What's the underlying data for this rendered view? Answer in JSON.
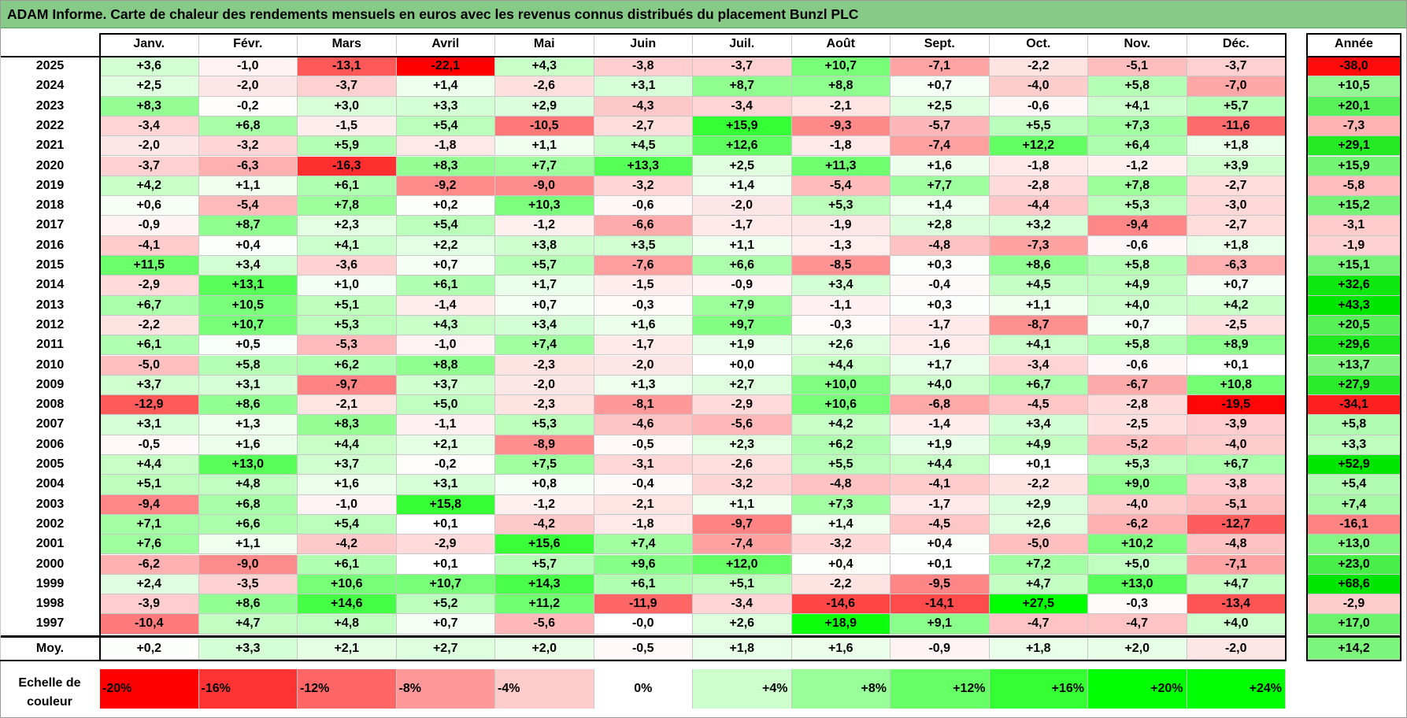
{
  "title": "ADAM Informe. Carte de chaleur des rendements mensuels en euros avec les revenus connus distribués du placement Bunzl PLC",
  "chart_data": {
    "type": "heatmap",
    "columns": [
      "Janv.",
      "Févr.",
      "Mars",
      "Avril",
      "Mai",
      "Juin",
      "Juil.",
      "Août",
      "Sept.",
      "Oct.",
      "Nov.",
      "Déc."
    ],
    "year_header": "Année",
    "rows": [
      {
        "year": "2025",
        "values": [
          "+3,6",
          "-1,0",
          "-13,1",
          "-22,1",
          "+4,3",
          "-3,8",
          "-3,7",
          "+10,7",
          "-7,1",
          "-2,2",
          "-5,1",
          "-3,7"
        ],
        "annual": "-38,0"
      },
      {
        "year": "2024",
        "values": [
          "+2,5",
          "-2,0",
          "-3,7",
          "+1,4",
          "-2,6",
          "+3,1",
          "+8,7",
          "+8,8",
          "+0,7",
          "-4,0",
          "+5,8",
          "-7,0"
        ],
        "annual": "+10,5"
      },
      {
        "year": "2023",
        "values": [
          "+8,3",
          "-0,2",
          "+3,0",
          "+3,3",
          "+2,9",
          "-4,3",
          "-3,4",
          "-2,1",
          "+2,5",
          "-0,6",
          "+4,1",
          "+5,7"
        ],
        "annual": "+20,1"
      },
      {
        "year": "2022",
        "values": [
          "-3,4",
          "+6,8",
          "-1,5",
          "+5,4",
          "-10,5",
          "-2,7",
          "+15,9",
          "-9,3",
          "-5,7",
          "+5,5",
          "+7,3",
          "-11,6"
        ],
        "annual": "-7,3"
      },
      {
        "year": "2021",
        "values": [
          "-2,0",
          "-3,2",
          "+5,9",
          "-1,8",
          "+1,1",
          "+4,5",
          "+12,6",
          "-1,8",
          "-7,4",
          "+12,2",
          "+6,4",
          "+1,8"
        ],
        "annual": "+29,1"
      },
      {
        "year": "2020",
        "values": [
          "-3,7",
          "-6,3",
          "-16,3",
          "+8,3",
          "+7,7",
          "+13,3",
          "+2,5",
          "+11,3",
          "+1,6",
          "-1,8",
          "-1,2",
          "+3,9"
        ],
        "annual": "+15,9"
      },
      {
        "year": "2019",
        "values": [
          "+4,2",
          "+1,1",
          "+6,1",
          "-9,2",
          "-9,0",
          "-3,2",
          "+1,4",
          "-5,4",
          "+7,7",
          "-2,8",
          "+7,8",
          "-2,7"
        ],
        "annual": "-5,8"
      },
      {
        "year": "2018",
        "values": [
          "+0,6",
          "-5,4",
          "+7,8",
          "+0,2",
          "+10,3",
          "-0,6",
          "-2,0",
          "+5,3",
          "+1,4",
          "-4,4",
          "+5,3",
          "-3,0"
        ],
        "annual": "+15,2"
      },
      {
        "year": "2017",
        "values": [
          "-0,9",
          "+8,7",
          "+2,3",
          "+5,4",
          "-1,2",
          "-6,6",
          "-1,7",
          "-1,9",
          "+2,8",
          "+3,2",
          "-9,4",
          "-2,7"
        ],
        "annual": "-3,1"
      },
      {
        "year": "2016",
        "values": [
          "-4,1",
          "+0,4",
          "+4,1",
          "+2,2",
          "+3,8",
          "+3,5",
          "+1,1",
          "-1,3",
          "-4,8",
          "-7,3",
          "-0,6",
          "+1,8"
        ],
        "annual": "-1,9"
      },
      {
        "year": "2015",
        "values": [
          "+11,5",
          "+3,4",
          "-3,6",
          "+0,7",
          "+5,7",
          "-7,6",
          "+6,6",
          "-8,5",
          "+0,3",
          "+8,6",
          "+5,8",
          "-6,3"
        ],
        "annual": "+15,1"
      },
      {
        "year": "2014",
        "values": [
          "-2,9",
          "+13,1",
          "+1,0",
          "+6,1",
          "+1,7",
          "-1,5",
          "-0,9",
          "+3,4",
          "-0,4",
          "+4,5",
          "+4,9",
          "+0,7"
        ],
        "annual": "+32,6"
      },
      {
        "year": "2013",
        "values": [
          "+6,7",
          "+10,5",
          "+5,1",
          "-1,4",
          "+0,7",
          "-0,3",
          "+7,9",
          "-1,1",
          "+0,3",
          "+1,1",
          "+4,0",
          "+4,2"
        ],
        "annual": "+43,3"
      },
      {
        "year": "2012",
        "values": [
          "-2,2",
          "+10,7",
          "+5,3",
          "+4,3",
          "+3,4",
          "+1,6",
          "+9,7",
          "-0,3",
          "-1,7",
          "-8,7",
          "+0,7",
          "-2,5"
        ],
        "annual": "+20,5"
      },
      {
        "year": "2011",
        "values": [
          "+6,1",
          "+0,5",
          "-5,3",
          "-1,0",
          "+7,4",
          "-1,7",
          "+1,9",
          "+2,6",
          "-1,6",
          "+4,1",
          "+5,8",
          "+8,9"
        ],
        "annual": "+29,6"
      },
      {
        "year": "2010",
        "values": [
          "-5,0",
          "+5,8",
          "+6,2",
          "+8,8",
          "-2,3",
          "-2,0",
          "+0,0",
          "+4,4",
          "+1,7",
          "-3,4",
          "-0,6",
          "+0,1"
        ],
        "annual": "+13,7"
      },
      {
        "year": "2009",
        "values": [
          "+3,7",
          "+3,1",
          "-9,7",
          "+3,7",
          "-2,0",
          "+1,3",
          "+2,7",
          "+10,0",
          "+4,0",
          "+6,7",
          "-6,7",
          "+10,8"
        ],
        "annual": "+27,9"
      },
      {
        "year": "2008",
        "values": [
          "-12,9",
          "+8,6",
          "-2,1",
          "+5,0",
          "-2,3",
          "-8,1",
          "-2,9",
          "+10,6",
          "-6,8",
          "-4,5",
          "-2,8",
          "-19,5"
        ],
        "annual": "-34,1"
      },
      {
        "year": "2007",
        "values": [
          "+3,1",
          "+1,3",
          "+8,3",
          "-1,1",
          "+5,3",
          "-4,6",
          "-5,6",
          "+4,2",
          "-1,4",
          "+3,4",
          "-2,5",
          "-3,9"
        ],
        "annual": "+5,8"
      },
      {
        "year": "2006",
        "values": [
          "-0,5",
          "+1,6",
          "+4,4",
          "+2,1",
          "-8,9",
          "-0,5",
          "+2,3",
          "+6,2",
          "+1,9",
          "+4,9",
          "-5,2",
          "-4,0"
        ],
        "annual": "+3,3"
      },
      {
        "year": "2005",
        "values": [
          "+4,4",
          "+13,0",
          "+3,7",
          "-0,2",
          "+7,5",
          "-3,1",
          "-2,6",
          "+5,5",
          "+4,4",
          "+0,1",
          "+5,3",
          "+6,7"
        ],
        "annual": "+52,9"
      },
      {
        "year": "2004",
        "values": [
          "+5,1",
          "+4,8",
          "+1,6",
          "+3,1",
          "+0,8",
          "-0,4",
          "-3,2",
          "-4,8",
          "-4,1",
          "-2,2",
          "+9,0",
          "-3,8"
        ],
        "annual": "+5,4"
      },
      {
        "year": "2003",
        "values": [
          "-9,4",
          "+6,8",
          "-1,0",
          "+15,8",
          "-1,2",
          "-2,1",
          "+1,1",
          "+7,3",
          "-1,7",
          "+2,9",
          "-4,0",
          "-5,1"
        ],
        "annual": "+7,4"
      },
      {
        "year": "2002",
        "values": [
          "+7,1",
          "+6,6",
          "+5,4",
          "+0,1",
          "-4,2",
          "-1,8",
          "-9,7",
          "+1,4",
          "-4,5",
          "+2,6",
          "-6,2",
          "-12,7"
        ],
        "annual": "-16,1"
      },
      {
        "year": "2001",
        "values": [
          "+7,6",
          "+1,1",
          "-4,2",
          "-2,9",
          "+15,6",
          "+7,4",
          "-7,4",
          "-3,2",
          "+0,4",
          "-5,0",
          "+10,2",
          "-4,8"
        ],
        "annual": "+13,0"
      },
      {
        "year": "2000",
        "values": [
          "-6,2",
          "-9,0",
          "+6,1",
          "+0,1",
          "+5,7",
          "+9,6",
          "+12,0",
          "+0,4",
          "+0,1",
          "+7,2",
          "+5,0",
          "-7,1"
        ],
        "annual": "+23,0"
      },
      {
        "year": "1999",
        "values": [
          "+2,4",
          "-3,5",
          "+10,6",
          "+10,7",
          "+14,3",
          "+6,1",
          "+5,1",
          "-2,2",
          "-9,5",
          "+4,7",
          "+13,0",
          "+4,7"
        ],
        "annual": "+68,6"
      },
      {
        "year": "1998",
        "values": [
          "-3,9",
          "+8,6",
          "+14,6",
          "+5,2",
          "+11,2",
          "-11,9",
          "-3,4",
          "-14,6",
          "-14,1",
          "+27,5",
          "-0,3",
          "-13,4"
        ],
        "annual": "-2,9"
      },
      {
        "year": "1997",
        "values": [
          "-10,4",
          "+4,7",
          "+4,8",
          "+0,7",
          "-5,6",
          "-0,0",
          "+2,6",
          "+18,9",
          "+9,1",
          "-4,7",
          "-4,7",
          "+4,0"
        ],
        "annual": "+17,0"
      }
    ],
    "average": {
      "label": "Moy.",
      "values": [
        "+0,2",
        "+3,3",
        "+2,1",
        "+2,7",
        "+2,0",
        "-0,5",
        "+1,8",
        "+1,6",
        "-0,9",
        "+1,8",
        "+2,0",
        "-2,0"
      ],
      "annual": "+14,2"
    },
    "scale": {
      "label": "Echelle de couleur",
      "steps": [
        {
          "label": "-20%",
          "value": -20,
          "color": "#ff0000"
        },
        {
          "label": "-16%",
          "value": -16,
          "color": "#ff3333"
        },
        {
          "label": "-12%",
          "value": -12,
          "color": "#ff6666"
        },
        {
          "label": "-8%",
          "value": -8,
          "color": "#ff9999"
        },
        {
          "label": "-4%",
          "value": -4,
          "color": "#ffcccc"
        },
        {
          "label": "0%",
          "value": 0,
          "color": "#ffffff"
        },
        {
          "label": "+4%",
          "value": 4,
          "color": "#ccffcc"
        },
        {
          "label": "+8%",
          "value": 8,
          "color": "#99ff99"
        },
        {
          "label": "+12%",
          "value": 12,
          "color": "#66ff66"
        },
        {
          "label": "+16%",
          "value": 16,
          "color": "#33ff33"
        },
        {
          "label": "+20%",
          "value": 20,
          "color": "#00ff00"
        },
        {
          "label": "+24%",
          "value": 24,
          "color": "#00ff00"
        }
      ]
    },
    "annual_scale": {
      "min": -40,
      "max": 60,
      "neg_color": "#ff0000",
      "pos_color": "#00ff00"
    }
  }
}
